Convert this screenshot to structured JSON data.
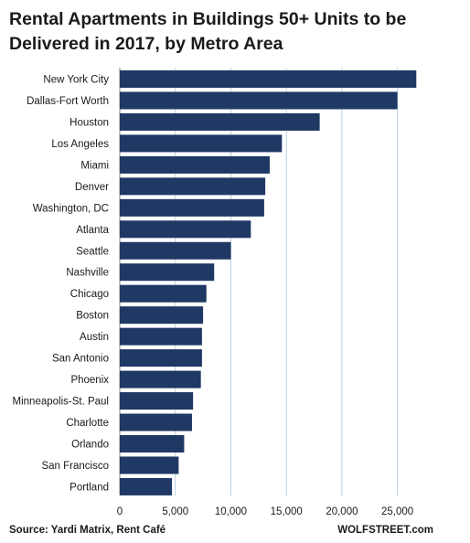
{
  "chart_data": {
    "type": "bar",
    "orientation": "horizontal",
    "title": "Rental Apartments in Buildings 50+ Units to be Delivered in 2017, by Metro Area",
    "categories": [
      "New York City",
      "Dallas-Fort Worth",
      "Houston",
      "Los Angeles",
      "Miami",
      "Denver",
      "Washington, DC",
      "Atlanta",
      "Seattle",
      "Nashville",
      "Chicago",
      "Boston",
      "Austin",
      "San Antonio",
      "Phoenix",
      "Minneapolis-St. Paul",
      "Charlotte",
      "Orlando",
      "San Francisco",
      "Portland"
    ],
    "values": [
      26700,
      25000,
      18000,
      14600,
      13500,
      13100,
      13000,
      11800,
      10000,
      8500,
      7800,
      7500,
      7400,
      7400,
      7300,
      6600,
      6500,
      5800,
      5300,
      4700
    ],
    "xlim": [
      0,
      27500
    ],
    "xticks": [
      0,
      5000,
      10000,
      15000,
      20000,
      25000
    ],
    "xtick_labels": [
      "0",
      "5,000",
      "10,000",
      "15,000",
      "20,000",
      "25,000"
    ],
    "grid": "vertical",
    "bar_color": "#1f3864",
    "grid_color": "#b8cfe3"
  },
  "footer": {
    "source": "Source: Yardi Matrix, Rent Café",
    "brand": "WOLFSTREET.com"
  }
}
